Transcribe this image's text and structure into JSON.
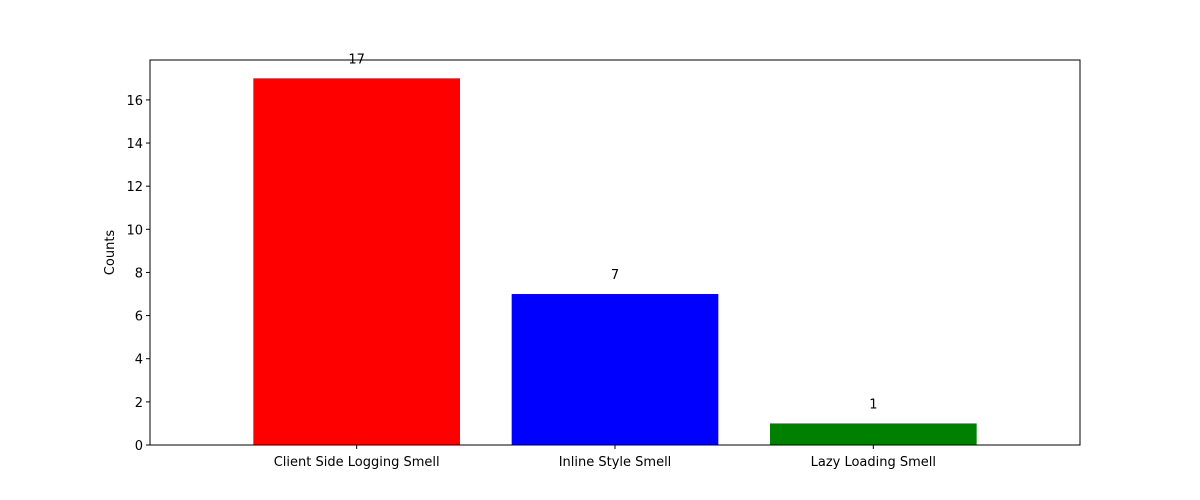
{
  "chart_data": {
    "type": "bar",
    "title": "",
    "xlabel": "",
    "ylabel": "Counts",
    "categories": [
      "Client Side Logging Smell",
      "Inline Style Smell",
      "Lazy Loading Smell"
    ],
    "values": [
      17,
      7,
      1
    ],
    "colors": [
      "#ff0000",
      "#0000ff",
      "#008000"
    ],
    "data_labels": [
      "17",
      "7",
      "1"
    ],
    "ylim": [
      0,
      17.85
    ],
    "yticks": [
      0,
      2,
      4,
      6,
      8,
      10,
      12,
      14,
      16
    ],
    "ytick_labels": [
      "0",
      "2",
      "4",
      "6",
      "8",
      "10",
      "12",
      "14",
      "16"
    ],
    "grid": false,
    "legend": "none"
  }
}
